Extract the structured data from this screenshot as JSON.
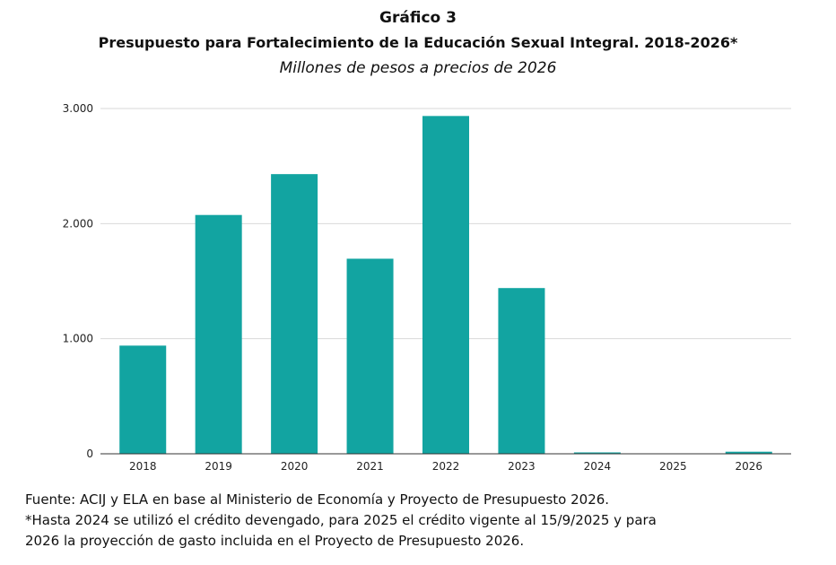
{
  "chart_data": {
    "type": "bar",
    "title": "Gráfico 3",
    "subtitle": "Presupuesto para Fortalecimiento de la Educación Sexual Integral. 2018-2026*",
    "units": "Millones de pesos a precios de 2026",
    "categories": [
      "2018",
      "2019",
      "2020",
      "2021",
      "2022",
      "2023",
      "2024",
      "2025",
      "2026"
    ],
    "values": [
      940,
      2075,
      2430,
      1695,
      2935,
      1440,
      12,
      0,
      18
    ],
    "ylim": [
      0,
      3000
    ],
    "yticks": [
      0,
      1000,
      2000,
      3000
    ],
    "ytick_labels": [
      "0",
      "1.000",
      "2.000",
      "3.000"
    ],
    "bar_color": "#12a4a1",
    "grid": true
  },
  "footer": {
    "source": "Fuente: ACIJ y ELA en base al Ministerio de Economía y Proyecto de Presupuesto 2026.",
    "note_line1": "*Hasta 2024 se utilizó el crédito devengado, para 2025 el crédito vigente al 15/9/2025 y para",
    "note_line2": "2026 la proyección de gasto incluida en el Proyecto de Presupuesto 2026."
  }
}
